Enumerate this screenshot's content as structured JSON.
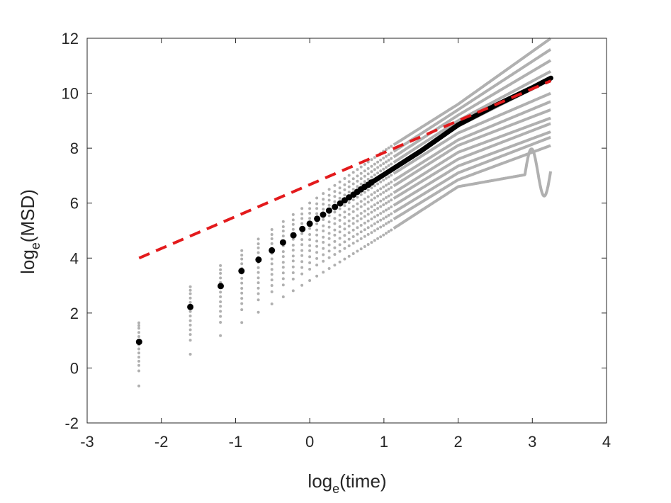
{
  "chart_data": {
    "type": "scatter",
    "xlabel": {
      "base": "log",
      "sub": "e",
      "rest": "(time)"
    },
    "ylabel": {
      "base": "log",
      "sub": "e",
      "rest": "(MSD)"
    },
    "xlim": [
      -3,
      4
    ],
    "ylim": [
      -2,
      12
    ],
    "xticks": [
      -3,
      -2,
      -1,
      0,
      1,
      2,
      3,
      4
    ],
    "yticks": [
      -2,
      0,
      2,
      4,
      6,
      8,
      10,
      12
    ],
    "xtick_labels": [
      "-3",
      "-2",
      "-1",
      "0",
      "1",
      "2",
      "3",
      "4"
    ],
    "ytick_labels": [
      "-2",
      "0",
      "2",
      "4",
      "6",
      "8",
      "10",
      "12"
    ],
    "grid": false,
    "series": [
      {
        "kind": "individual-trajectories",
        "color": "#b0b0b0",
        "curves": [
          {
            "start": 1.65,
            "mid": [
              [
                1.0,
                7.9
              ],
              [
                2.0,
                9.6
              ]
            ],
            "end": 12.0
          },
          {
            "start": 1.55,
            "mid": [
              [
                1.0,
                7.65
              ],
              [
                2.0,
                9.4
              ]
            ],
            "end": 11.6
          },
          {
            "start": 1.45,
            "mid": [
              [
                1.0,
                7.45
              ],
              [
                2.0,
                9.2
              ]
            ],
            "end": 11.2
          },
          {
            "start": 1.3,
            "mid": [
              [
                1.0,
                7.25
              ],
              [
                2.0,
                9.0
              ]
            ],
            "end": 10.8
          },
          {
            "start": 1.15,
            "mid": [
              [
                1.0,
                7.05
              ],
              [
                2.0,
                8.8
              ]
            ],
            "end": 10.5
          },
          {
            "start": 1.0,
            "mid": [
              [
                1.0,
                6.85
              ],
              [
                2.0,
                8.55
              ]
            ],
            "end": 10.0
          },
          {
            "start": 0.85,
            "mid": [
              [
                1.0,
                6.6
              ],
              [
                2.0,
                8.3
              ]
            ],
            "end": 9.7
          },
          {
            "start": 0.7,
            "mid": [
              [
                1.0,
                6.4
              ],
              [
                2.0,
                8.1
              ]
            ],
            "end": 9.4
          },
          {
            "start": 0.55,
            "mid": [
              [
                1.0,
                6.15
              ],
              [
                2.0,
                7.85
              ]
            ],
            "end": 9.1
          },
          {
            "start": 0.4,
            "mid": [
              [
                1.0,
                5.95
              ],
              [
                2.0,
                7.6
              ]
            ],
            "end": 8.9
          },
          {
            "start": 0.25,
            "mid": [
              [
                1.0,
                5.7
              ],
              [
                2.0,
                7.35
              ]
            ],
            "end": 8.6
          },
          {
            "start": 0.1,
            "mid": [
              [
                1.0,
                5.45
              ],
              [
                2.0,
                7.1
              ]
            ],
            "end": 8.4
          },
          {
            "start": -0.1,
            "mid": [
              [
                1.0,
                5.2
              ],
              [
                2.0,
                6.85
              ]
            ],
            "end": 8.1
          },
          {
            "start": -0.65,
            "mid": [
              [
                1.0,
                4.85
              ],
              [
                2.0,
                6.6
              ]
            ],
            "end": 7.2
          }
        ]
      },
      {
        "kind": "ensemble-mean",
        "color": "#000000",
        "points": [
          [
            -2.3,
            0.95
          ],
          [
            -1.61,
            2.22
          ],
          [
            -1.2,
            2.98
          ],
          [
            -0.92,
            3.53
          ],
          [
            -0.69,
            3.94
          ],
          [
            -0.51,
            4.28
          ],
          [
            -0.36,
            4.57
          ],
          [
            -0.22,
            4.83
          ],
          [
            -0.1,
            5.06
          ],
          [
            0.0,
            5.25
          ],
          [
            0.1,
            5.43
          ],
          [
            0.18,
            5.58
          ],
          [
            0.26,
            5.73
          ],
          [
            0.34,
            5.86
          ],
          [
            0.41,
            5.99
          ],
          [
            0.47,
            6.1
          ],
          [
            0.53,
            6.21
          ],
          [
            0.59,
            6.31
          ],
          [
            0.64,
            6.41
          ],
          [
            0.69,
            6.5
          ],
          [
            0.74,
            6.59
          ],
          [
            0.79,
            6.67
          ],
          [
            0.83,
            6.75
          ],
          [
            0.88,
            6.83
          ],
          [
            0.92,
            6.9
          ],
          [
            0.96,
            6.97
          ],
          [
            1.0,
            7.04
          ],
          [
            1.5,
            7.9
          ],
          [
            2.0,
            8.85
          ],
          [
            2.5,
            9.55
          ],
          [
            3.0,
            10.2
          ],
          [
            3.25,
            10.55
          ]
        ]
      },
      {
        "kind": "fit-line",
        "color": "#e31a1c",
        "dashed": true,
        "x": [
          -2.3,
          3.25
        ],
        "y": [
          4.0,
          10.45
        ]
      }
    ]
  }
}
